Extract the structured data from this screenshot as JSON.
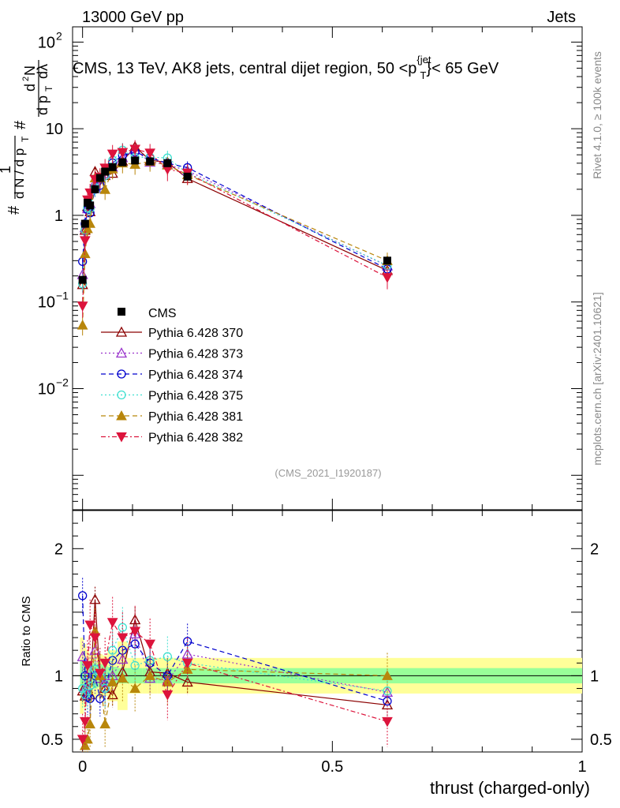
{
  "header": {
    "left": "13000 GeV pp",
    "right": "Jets"
  },
  "chart_data": {
    "type": "scatter",
    "title": "CMS, 13 TeV, AK8 jets, central dijet region, 50 <p_T^{jet}< 65 GeV",
    "title_parts": {
      "a": "CMS, 13 TeV, AK8 jets, central dijet region, 50 <p",
      "sup": "{jet",
      "sub": "T",
      "b": "}< 65 GeV"
    },
    "analysis_id": "(CMS_2021_I1920187)",
    "xlabel": "thrust (charged-only)",
    "ylabel_main": "1/N dN/dp_T d²N/dp_T dλ",
    "ylabel_ratio": "Ratio to CMS",
    "xlim": [
      -0.02,
      1.0
    ],
    "ylim_main_log": [
      0.0004,
      150
    ],
    "ylim_ratio": [
      0.4,
      2.3
    ],
    "x_ticks": [
      {
        "value": 0,
        "label": "0"
      },
      {
        "value": 0.5,
        "label": "0.5"
      },
      {
        "value": 1,
        "label": "1"
      }
    ],
    "y_ticks_main": [
      {
        "value": 0.01,
        "base": "10",
        "exp": "−2"
      },
      {
        "value": 0.1,
        "base": "10",
        "exp": "−1"
      },
      {
        "value": 1,
        "base": "1",
        "exp": ""
      },
      {
        "value": 10,
        "base": "10",
        "exp": ""
      },
      {
        "value": 100,
        "base": "10",
        "exp": "2"
      }
    ],
    "y_ticks_ratio": [
      {
        "value": 0.5,
        "label": "0.5"
      },
      {
        "value": 1,
        "label": "1"
      },
      {
        "value": 2,
        "label": "2"
      }
    ],
    "x": [
      0.0,
      0.005,
      0.01,
      0.015,
      0.025,
      0.035,
      0.045,
      0.06,
      0.08,
      0.105,
      0.135,
      0.17,
      0.21,
      0.61
    ],
    "x_edges": [
      -0.005,
      0.0025,
      0.0075,
      0.0125,
      0.02,
      0.03,
      0.04,
      0.05,
      0.07,
      0.09,
      0.12,
      0.15,
      0.19,
      1.0
    ],
    "data": {
      "name": "CMS",
      "values": [
        0.18,
        0.8,
        1.4,
        1.3,
        2.0,
        2.7,
        3.2,
        3.6,
        4.1,
        4.3,
        4.2,
        4.0,
        2.8,
        0.3
      ],
      "band_inner": [
        0.12,
        0.15,
        0.1,
        0.08,
        0.1,
        0.09,
        0.08,
        0.07,
        0.06,
        0.06,
        0.06,
        0.06,
        0.06,
        0.06
      ],
      "band_outer": [
        0.3,
        0.25,
        0.2,
        0.18,
        0.18,
        0.17,
        0.16,
        0.2,
        0.27,
        0.14,
        0.14,
        0.14,
        0.14,
        0.14
      ],
      "color": "#000000"
    },
    "series": [
      {
        "name": "Pythia 6.428 370",
        "color": "#8b0000",
        "marker": "triangle-open",
        "dash": "",
        "ratios": [
          0.88,
          0.84,
          0.9,
          0.85,
          1.6,
          0.98,
          0.9,
          0.85,
          1.03,
          1.44,
          1.03,
          1.02,
          0.95,
          0.77
        ]
      },
      {
        "name": "Pythia 6.428 373",
        "color": "#9932cc",
        "marker": "triangle-open",
        "dash": "2,3",
        "ratios": [
          1.15,
          0.9,
          0.85,
          1.05,
          1.2,
          0.98,
          0.95,
          1.0,
          1.13,
          1.33,
          0.98,
          0.96,
          1.17,
          0.87
        ]
      },
      {
        "name": "Pythia 6.428 374",
        "color": "#0000cd",
        "marker": "circle-open",
        "dash": "6,4",
        "ratios": [
          1.63,
          1.0,
          0.83,
          0.82,
          1.0,
          0.82,
          0.9,
          1.12,
          1.2,
          1.25,
          1.1,
          1.0,
          1.27,
          0.8
        ]
      },
      {
        "name": "Pythia 6.428 375",
        "color": "#40e0d0",
        "marker": "circle-open",
        "dash": "2,3",
        "ratios": [
          0.9,
          0.85,
          0.88,
          0.92,
          1.05,
          1.0,
          0.9,
          1.2,
          1.38,
          1.08,
          1.12,
          1.15,
          1.1,
          0.88
        ]
      },
      {
        "name": "Pythia 6.428 381",
        "color": "#b8860b",
        "marker": "triangle-filled",
        "dash": "6,4",
        "ratios": [
          0.3,
          0.45,
          0.5,
          0.62,
          1.35,
          1.0,
          0.62,
          0.95,
          0.98,
          0.9,
          1.0,
          0.95,
          1.05,
          1.0
        ]
      },
      {
        "name": "Pythia 6.428 382",
        "color": "#dc143c",
        "marker": "triangle-down-filled",
        "dash": "6,3,2,3",
        "ratios": [
          0.5,
          0.64,
          1.08,
          1.4,
          1.3,
          1.02,
          1.1,
          1.42,
          1.3,
          1.35,
          1.25,
          0.85,
          1.1,
          0.64
        ]
      }
    ]
  },
  "side_labels": {
    "rivet": "Rivet 4.1.0, ≥ 100k events",
    "mcplots": "mcplots.cern.ch [arXiv:2401.10621]"
  }
}
